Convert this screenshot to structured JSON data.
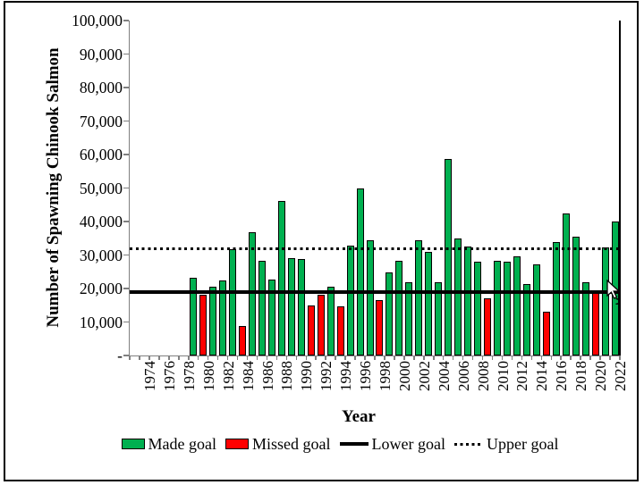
{
  "chart_data": {
    "type": "bar",
    "title": "",
    "xlabel": "Year",
    "ylabel": "Number of Spawning Chinook Salmon",
    "ylim": [
      0,
      100000
    ],
    "ytick_interval": 10000,
    "y_tick_labels": [
      "100,000",
      "90,000",
      "80,000",
      "70,000",
      "60,000",
      "50,000",
      "40,000",
      "30,000",
      "20,000",
      "10,000",
      "-"
    ],
    "x_tick_labels": [
      "1974",
      "1976",
      "1978",
      "1980",
      "1982",
      "1984",
      "1986",
      "1988",
      "1990",
      "1992",
      "1994",
      "1996",
      "1998",
      "2000",
      "2002",
      "2004",
      "2006",
      "2008",
      "2010",
      "2012",
      "2014",
      "2016",
      "2018",
      "2020",
      "2022"
    ],
    "x_range_years": [
      1974,
      2023
    ],
    "lower_goal": 19000,
    "upper_goal": 32000,
    "colors": {
      "made": "#00B050",
      "missed": "#FF0000",
      "goal_lines": "#000000",
      "axis": "#808080"
    },
    "legend": [
      {
        "label": "Made goal",
        "swatch": "green-box"
      },
      {
        "label": "Missed goal",
        "swatch": "red-box"
      },
      {
        "label": "Lower goal",
        "swatch": "solid-line"
      },
      {
        "label": "Upper goal",
        "swatch": "dotted-line"
      }
    ],
    "bars": [
      {
        "year": 1980,
        "value": 23200,
        "status": "made"
      },
      {
        "year": 1981,
        "value": 18100,
        "status": "missed"
      },
      {
        "year": 1982,
        "value": 20600,
        "status": "made"
      },
      {
        "year": 1983,
        "value": 22300,
        "status": "made"
      },
      {
        "year": 1984,
        "value": 31800,
        "status": "made"
      },
      {
        "year": 1985,
        "value": 8800,
        "status": "missed"
      },
      {
        "year": 1986,
        "value": 36700,
        "status": "made"
      },
      {
        "year": 1987,
        "value": 28300,
        "status": "made"
      },
      {
        "year": 1988,
        "value": 22600,
        "status": "made"
      },
      {
        "year": 1989,
        "value": 46100,
        "status": "made"
      },
      {
        "year": 1990,
        "value": 29000,
        "status": "made"
      },
      {
        "year": 1991,
        "value": 28700,
        "status": "made"
      },
      {
        "year": 1992,
        "value": 14900,
        "status": "missed"
      },
      {
        "year": 1993,
        "value": 18100,
        "status": "missed"
      },
      {
        "year": 1994,
        "value": 20600,
        "status": "made"
      },
      {
        "year": 1995,
        "value": 14600,
        "status": "missed"
      },
      {
        "year": 1996,
        "value": 32700,
        "status": "made"
      },
      {
        "year": 1997,
        "value": 50000,
        "status": "made"
      },
      {
        "year": 1998,
        "value": 34300,
        "status": "made"
      },
      {
        "year": 1999,
        "value": 16500,
        "status": "missed"
      },
      {
        "year": 2000,
        "value": 24800,
        "status": "made"
      },
      {
        "year": 2001,
        "value": 28300,
        "status": "made"
      },
      {
        "year": 2002,
        "value": 21900,
        "status": "made"
      },
      {
        "year": 2003,
        "value": 34300,
        "status": "made"
      },
      {
        "year": 2004,
        "value": 31000,
        "status": "made"
      },
      {
        "year": 2005,
        "value": 21900,
        "status": "made"
      },
      {
        "year": 2006,
        "value": 58600,
        "status": "made"
      },
      {
        "year": 2007,
        "value": 34900,
        "status": "made"
      },
      {
        "year": 2008,
        "value": 32600,
        "status": "made"
      },
      {
        "year": 2009,
        "value": 28000,
        "status": "made"
      },
      {
        "year": 2010,
        "value": 17000,
        "status": "missed"
      },
      {
        "year": 2011,
        "value": 28300,
        "status": "made"
      },
      {
        "year": 2012,
        "value": 28100,
        "status": "made"
      },
      {
        "year": 2013,
        "value": 29500,
        "status": "made"
      },
      {
        "year": 2014,
        "value": 21300,
        "status": "made"
      },
      {
        "year": 2015,
        "value": 27300,
        "status": "made"
      },
      {
        "year": 2016,
        "value": 13000,
        "status": "missed"
      },
      {
        "year": 2017,
        "value": 34000,
        "status": "made"
      },
      {
        "year": 2018,
        "value": 42400,
        "status": "made"
      },
      {
        "year": 2019,
        "value": 35600,
        "status": "made"
      },
      {
        "year": 2020,
        "value": 21900,
        "status": "made"
      },
      {
        "year": 2021,
        "value": 18800,
        "status": "missed"
      },
      {
        "year": 2022,
        "value": 32200,
        "status": "made"
      },
      {
        "year": 2023,
        "value": 39900,
        "status": "made"
      }
    ]
  },
  "cursor": {
    "visible": true
  }
}
